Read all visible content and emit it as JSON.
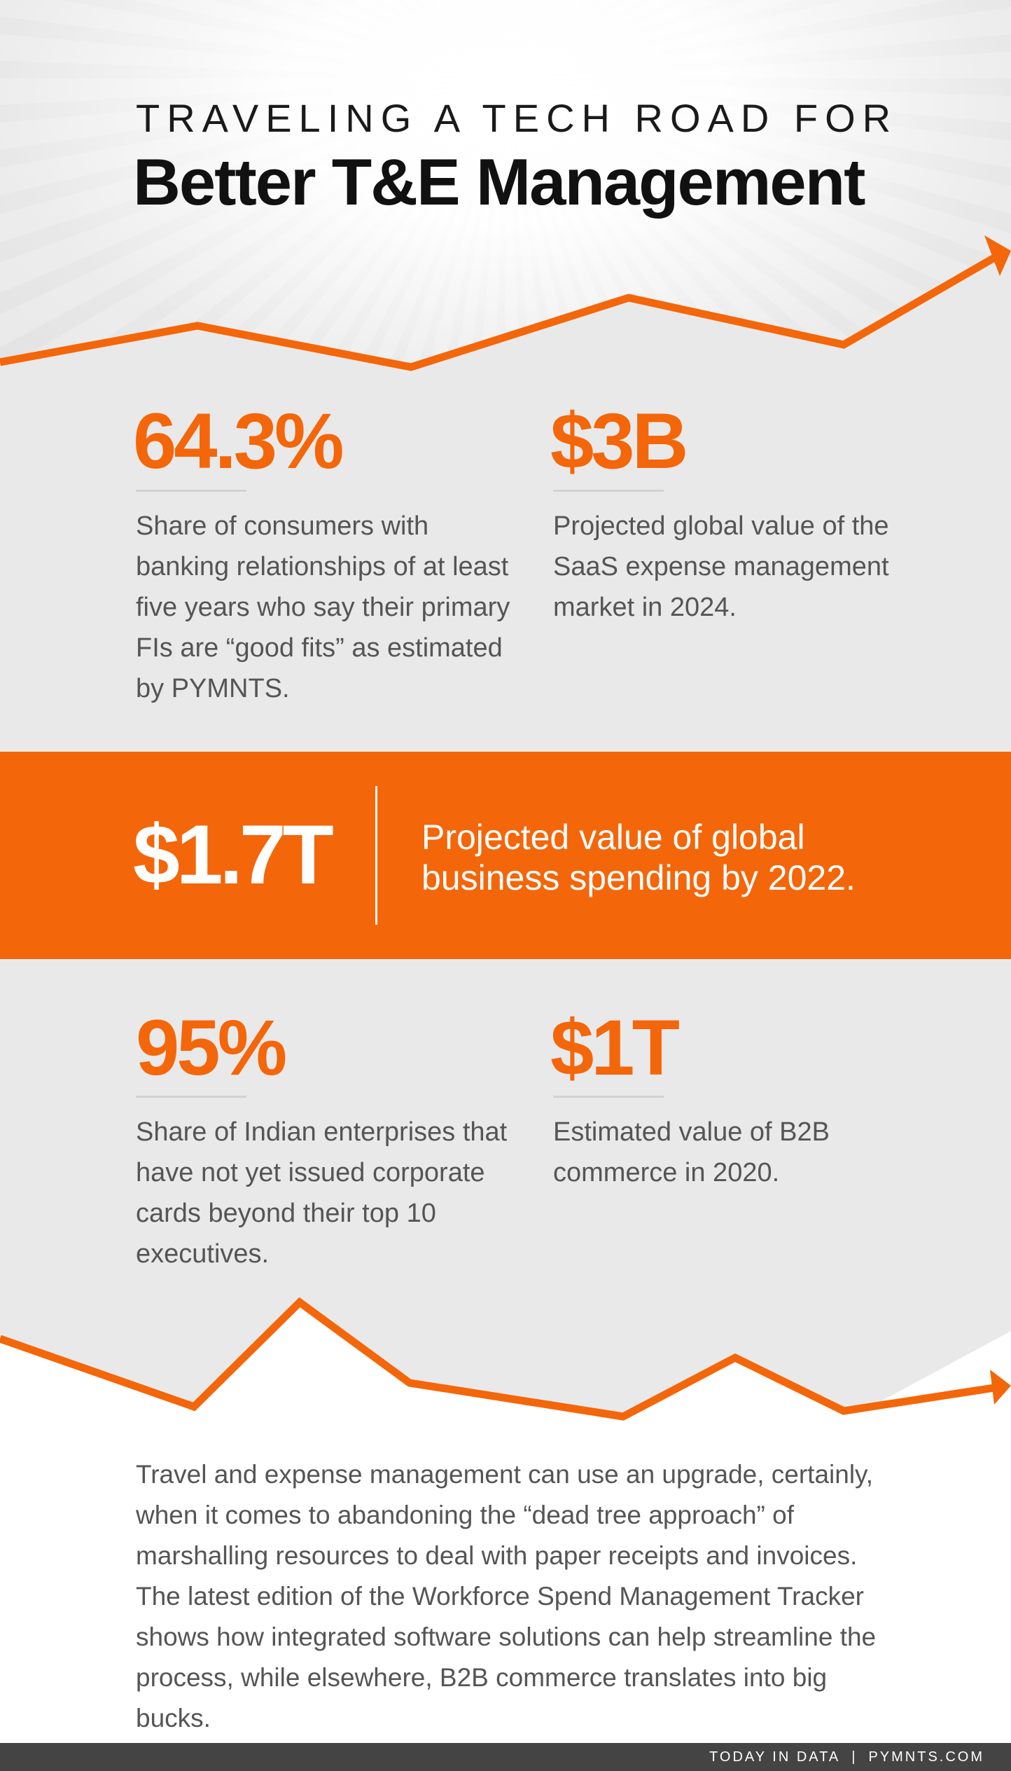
{
  "header": {
    "eyebrow": "TRAVELING A TECH ROAD FOR",
    "title": "Better T&E Management"
  },
  "stats_top": [
    {
      "value": "64.3%",
      "description": "Share of consumers with banking relationships of at least five years who say their primary FIs are “good fits” as estimated by PYMNTS."
    },
    {
      "value": "$3B",
      "description": "Projected global value of the SaaS expense management market in 2024."
    }
  ],
  "highlight": {
    "value": "$1.7T",
    "description": "Projected value of global business spending by 2022."
  },
  "stats_bottom": [
    {
      "value": "95%",
      "description": "Share of Indian enterprises that have not yet issued corporate cards beyond their top 10 executives."
    },
    {
      "value": "$1T",
      "description": "Estimated value of B2B commerce in 2020."
    }
  ],
  "body": {
    "text": "Travel and expense management can use an upgrade, certainly, when it comes to abandoning the “dead tree approach” of marshalling resources to deal with paper receipts and invoices. The latest edition of the Workforce Spend Management Tracker shows how integrated software solutions can help streamline the process, while elsewhere, B2B commerce translates into big bucks."
  },
  "footer": {
    "left": "TODAY IN DATA",
    "separator": "|",
    "right": "PYMNTS.COM"
  },
  "colors": {
    "accent": "#f4660a",
    "panel": "#e9e9ea",
    "footer": "#444444"
  }
}
